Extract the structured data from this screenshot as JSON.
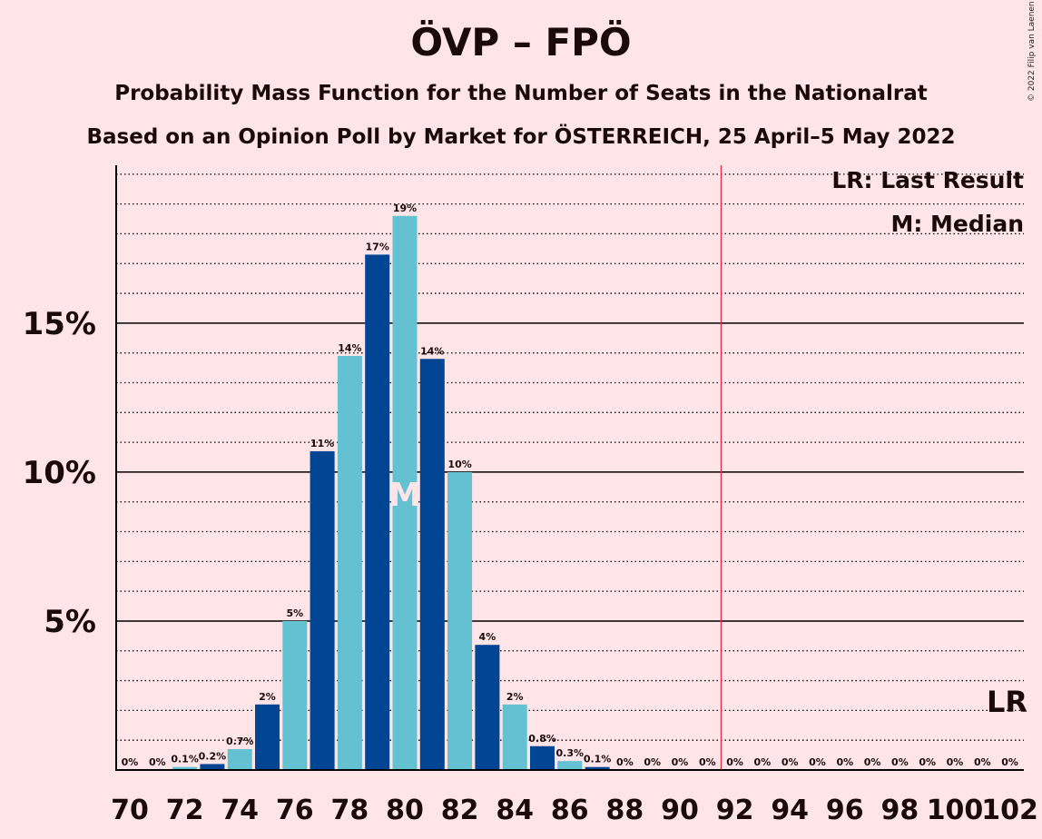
{
  "title": "ÖVP – FPÖ",
  "subtitle": "Probability Mass Function for the Number of Seats in the Nationalrat",
  "subtitle2": "Based on an Opinion Poll by Market for ÖSTERREICH, 25 April–5 May 2022",
  "copyright": "© 2022 Filip van Laenen",
  "legend": {
    "last_result": "LR: Last Result",
    "median": "M: Median"
  },
  "colors": {
    "background": "#FFE5E8",
    "bar_dark": "#004494",
    "bar_light": "#63C1D1",
    "majority_line": "#E0303A"
  },
  "chart_data": {
    "type": "bar",
    "x": [
      70,
      71,
      72,
      73,
      74,
      75,
      76,
      77,
      78,
      79,
      80,
      81,
      82,
      83,
      84,
      85,
      86,
      87,
      88,
      89,
      90,
      91,
      92,
      93,
      94,
      95,
      96,
      97,
      98,
      99,
      100,
      101,
      102
    ],
    "values": [
      0,
      0,
      0.1,
      0.2,
      0.7,
      2.2,
      5.0,
      10.7,
      13.9,
      17.3,
      18.6,
      13.8,
      10.0,
      4.2,
      2.2,
      0.8,
      0.3,
      0.1,
      0,
      0,
      0,
      0,
      0,
      0,
      0,
      0,
      0,
      0,
      0,
      0,
      0,
      0,
      0
    ],
    "labels": [
      "0%",
      "0%",
      "0.1%",
      "0.2%",
      "0.7%",
      "2%",
      "5%",
      "11%",
      "14%",
      "17%",
      "19%",
      "14%",
      "10%",
      "4%",
      "2%",
      "0.8%",
      "0.3%",
      "0.1%",
      "0%",
      "0%",
      "0%",
      "0%",
      "0%",
      "0%",
      "0%",
      "0%",
      "0%",
      "0%",
      "0%",
      "0%",
      "0%",
      "0%",
      "0%"
    ],
    "x_tick_labels": [
      "70",
      "72",
      "74",
      "76",
      "78",
      "80",
      "82",
      "84",
      "86",
      "88",
      "90",
      "92",
      "94",
      "96",
      "98",
      "100",
      "102"
    ],
    "y_tick_labels": [
      "5%",
      "10%",
      "15%"
    ],
    "y_ticks": [
      5,
      10,
      15
    ],
    "ylim": [
      0,
      20.3
    ],
    "median": 80,
    "median_marker": "M",
    "last_result": 102,
    "last_result_marker": "LR",
    "majority_threshold": 91.5
  }
}
